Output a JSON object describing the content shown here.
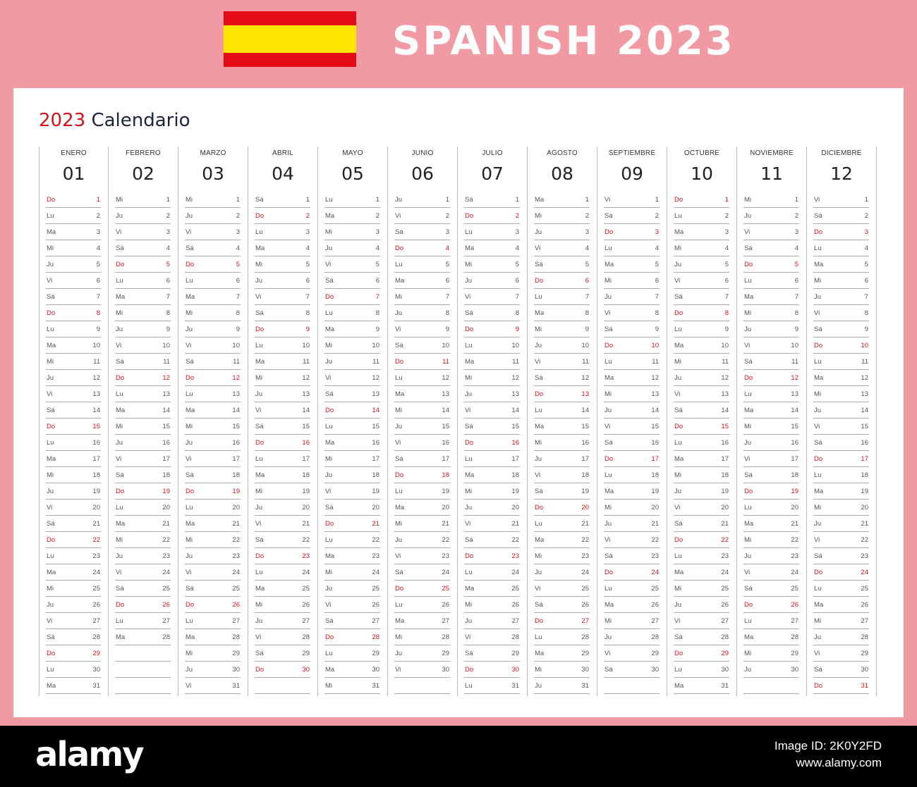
{
  "header": {
    "title": "SPANISH 2023",
    "flag": {
      "name": "spain-flag",
      "colors": [
        "#e30c17",
        "#ffe600",
        "#e30c17"
      ]
    }
  },
  "calendar": {
    "year": "2023",
    "word": "Calendario",
    "months": [
      {
        "name": "ENERO",
        "num": "01",
        "start": 6,
        "days": 31
      },
      {
        "name": "FEBRERO",
        "num": "02",
        "start": 2,
        "days": 28
      },
      {
        "name": "MARZO",
        "num": "03",
        "start": 2,
        "days": 31
      },
      {
        "name": "ABRIL",
        "num": "04",
        "start": 5,
        "days": 30
      },
      {
        "name": "MAYO",
        "num": "05",
        "start": 0,
        "days": 31
      },
      {
        "name": "JUNIO",
        "num": "06",
        "start": 3,
        "days": 30
      },
      {
        "name": "JULIO",
        "num": "07",
        "start": 5,
        "days": 31
      },
      {
        "name": "AGOSTO",
        "num": "08",
        "start": 1,
        "days": 31
      },
      {
        "name": "SEPTIEMBRE",
        "num": "09",
        "start": 4,
        "days": 30
      },
      {
        "name": "OCTUBRE",
        "num": "10",
        "start": 6,
        "days": 31
      },
      {
        "name": "NOVIEMBRE",
        "num": "11",
        "start": 2,
        "days": 30
      },
      {
        "name": "DICIEMBRE",
        "num": "12",
        "start": 4,
        "days": 31
      }
    ],
    "weekday_abbr": [
      "Lu",
      "Ma",
      "Mi",
      "Ju",
      "Vi",
      "Sá",
      "Do"
    ],
    "colors": {
      "sunday": "#d6111c",
      "weekday": "#555555",
      "accent_bg": "#f29aa3"
    }
  },
  "footer": {
    "brand": "alamy",
    "image_id": "Image ID: 2K0Y2FD",
    "url": "www.alamy.com"
  }
}
